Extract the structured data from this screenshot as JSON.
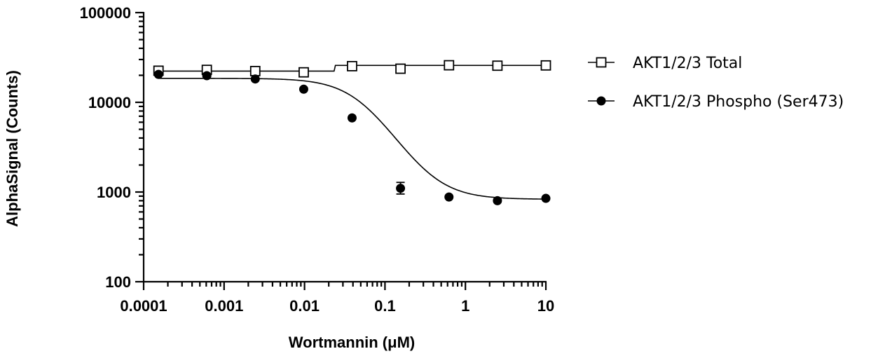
{
  "chart_data": {
    "type": "scatter",
    "xscale": "log",
    "yscale": "log",
    "xlim": [
      0.0001,
      10
    ],
    "ylim": [
      100,
      100000
    ],
    "xlabel": "Wortmannin (μM)",
    "ylabel": "AlphaSignal (Counts)",
    "x_ticks": [
      "0.0001",
      "0.001",
      "0.01",
      "0.1",
      "1",
      "10"
    ],
    "y_ticks": [
      "100",
      "1000",
      "10000",
      "100000"
    ],
    "legend_position": "right",
    "series": [
      {
        "name": "AKT1/2/3 Total",
        "marker": "open-square",
        "color": "#000000",
        "points": [
          {
            "x": 0.000153,
            "y": 22500
          },
          {
            "x": 0.00061,
            "y": 23000
          },
          {
            "x": 0.00244,
            "y": 22300
          },
          {
            "x": 0.00977,
            "y": 21600
          },
          {
            "x": 0.039,
            "y": 25300
          },
          {
            "x": 0.156,
            "y": 23700
          },
          {
            "x": 0.625,
            "y": 25900
          },
          {
            "x": 2.5,
            "y": 25600
          },
          {
            "x": 10,
            "y": 25800
          }
        ],
        "fit": {
          "model": "step",
          "bottom": 22300,
          "top": 25800,
          "transition_x": 0.024
        }
      },
      {
        "name": "AKT1/2/3 Phospho (Ser473)",
        "marker": "filled-circle",
        "color": "#000000",
        "points": [
          {
            "x": 0.000153,
            "y": 20500
          },
          {
            "x": 0.00061,
            "y": 19800
          },
          {
            "x": 0.00244,
            "y": 18200
          },
          {
            "x": 0.00977,
            "y": 14000
          },
          {
            "x": 0.039,
            "y": 6700
          },
          {
            "x": 0.156,
            "y": 1100,
            "err": [
              950,
              1280
            ]
          },
          {
            "x": 0.625,
            "y": 880
          },
          {
            "x": 2.5,
            "y": 800
          },
          {
            "x": 10,
            "y": 850
          }
        ],
        "fit": {
          "model": "4PL",
          "top": 18500,
          "bottom": 830,
          "ic50": 0.052,
          "hill": 1.6
        }
      }
    ]
  }
}
